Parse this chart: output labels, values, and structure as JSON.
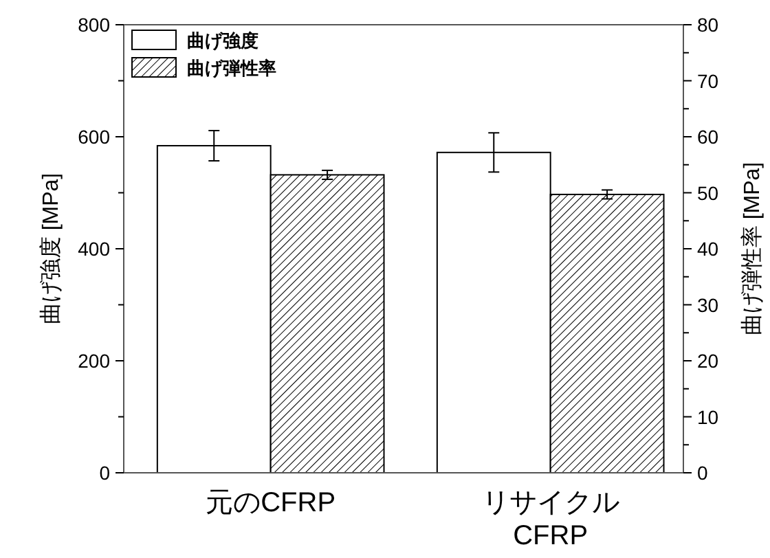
{
  "chart_data": {
    "type": "bar",
    "categories": [
      "元のCFRP",
      "リサイクル CFRP"
    ],
    "series": [
      {
        "name": "曲げ強度",
        "color": "#ffffff",
        "values": [
          584,
          572
        ],
        "errors": [
          27,
          35
        ]
      },
      {
        "name": "曲げ弾性率",
        "color": "#000000",
        "axis": "y2",
        "values": [
          53.2,
          49.7
        ],
        "errors": [
          0.8,
          0.8
        ]
      }
    ],
    "ylabel": "曲げ強度  [MPa]",
    "y2label": "曲げ弾性率  [MPa]",
    "ylim": [
      0,
      800
    ],
    "yticks": [
      0,
      {
        "value": 100,
        "label": null
      },
      200,
      {
        "value": 300,
        "label": null
      },
      400,
      {
        "value": 500,
        "label": null
      },
      600,
      {
        "value": 700,
        "label": null
      },
      800
    ],
    "y2lim": [
      0,
      80
    ],
    "y2ticks": [
      0,
      {
        "value": 5,
        "label": null
      },
      10,
      {
        "value": 15,
        "label": null
      },
      20,
      {
        "value": 25,
        "label": null
      },
      30,
      {
        "value": 35,
        "label": null
      },
      40,
      {
        "value": 45,
        "label": null
      },
      50,
      {
        "value": 55,
        "label": null
      },
      60,
      {
        "value": 65,
        "label": null
      },
      70,
      {
        "value": 75,
        "label": null
      },
      80
    ],
    "legend": "top left",
    "grid": false
  }
}
